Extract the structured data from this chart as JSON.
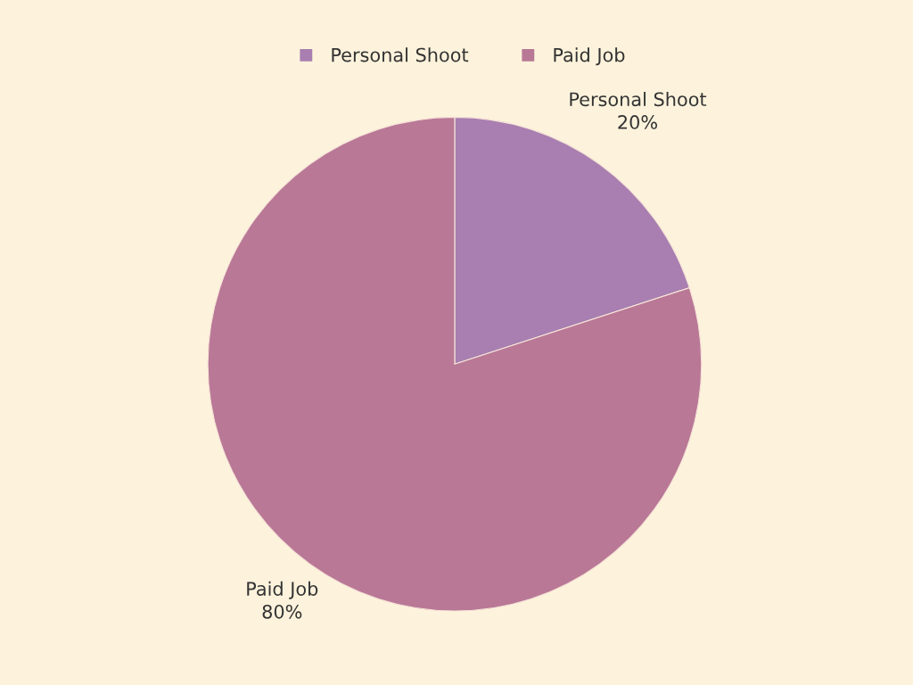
{
  "chart_data": {
    "type": "pie",
    "categories": [
      "Personal Shoot",
      "Paid Job"
    ],
    "values": [
      20,
      80
    ],
    "value_labels": [
      "20%",
      "80%"
    ],
    "colors": [
      "#a87fb0",
      "#b97896"
    ],
    "legend": "top"
  }
}
